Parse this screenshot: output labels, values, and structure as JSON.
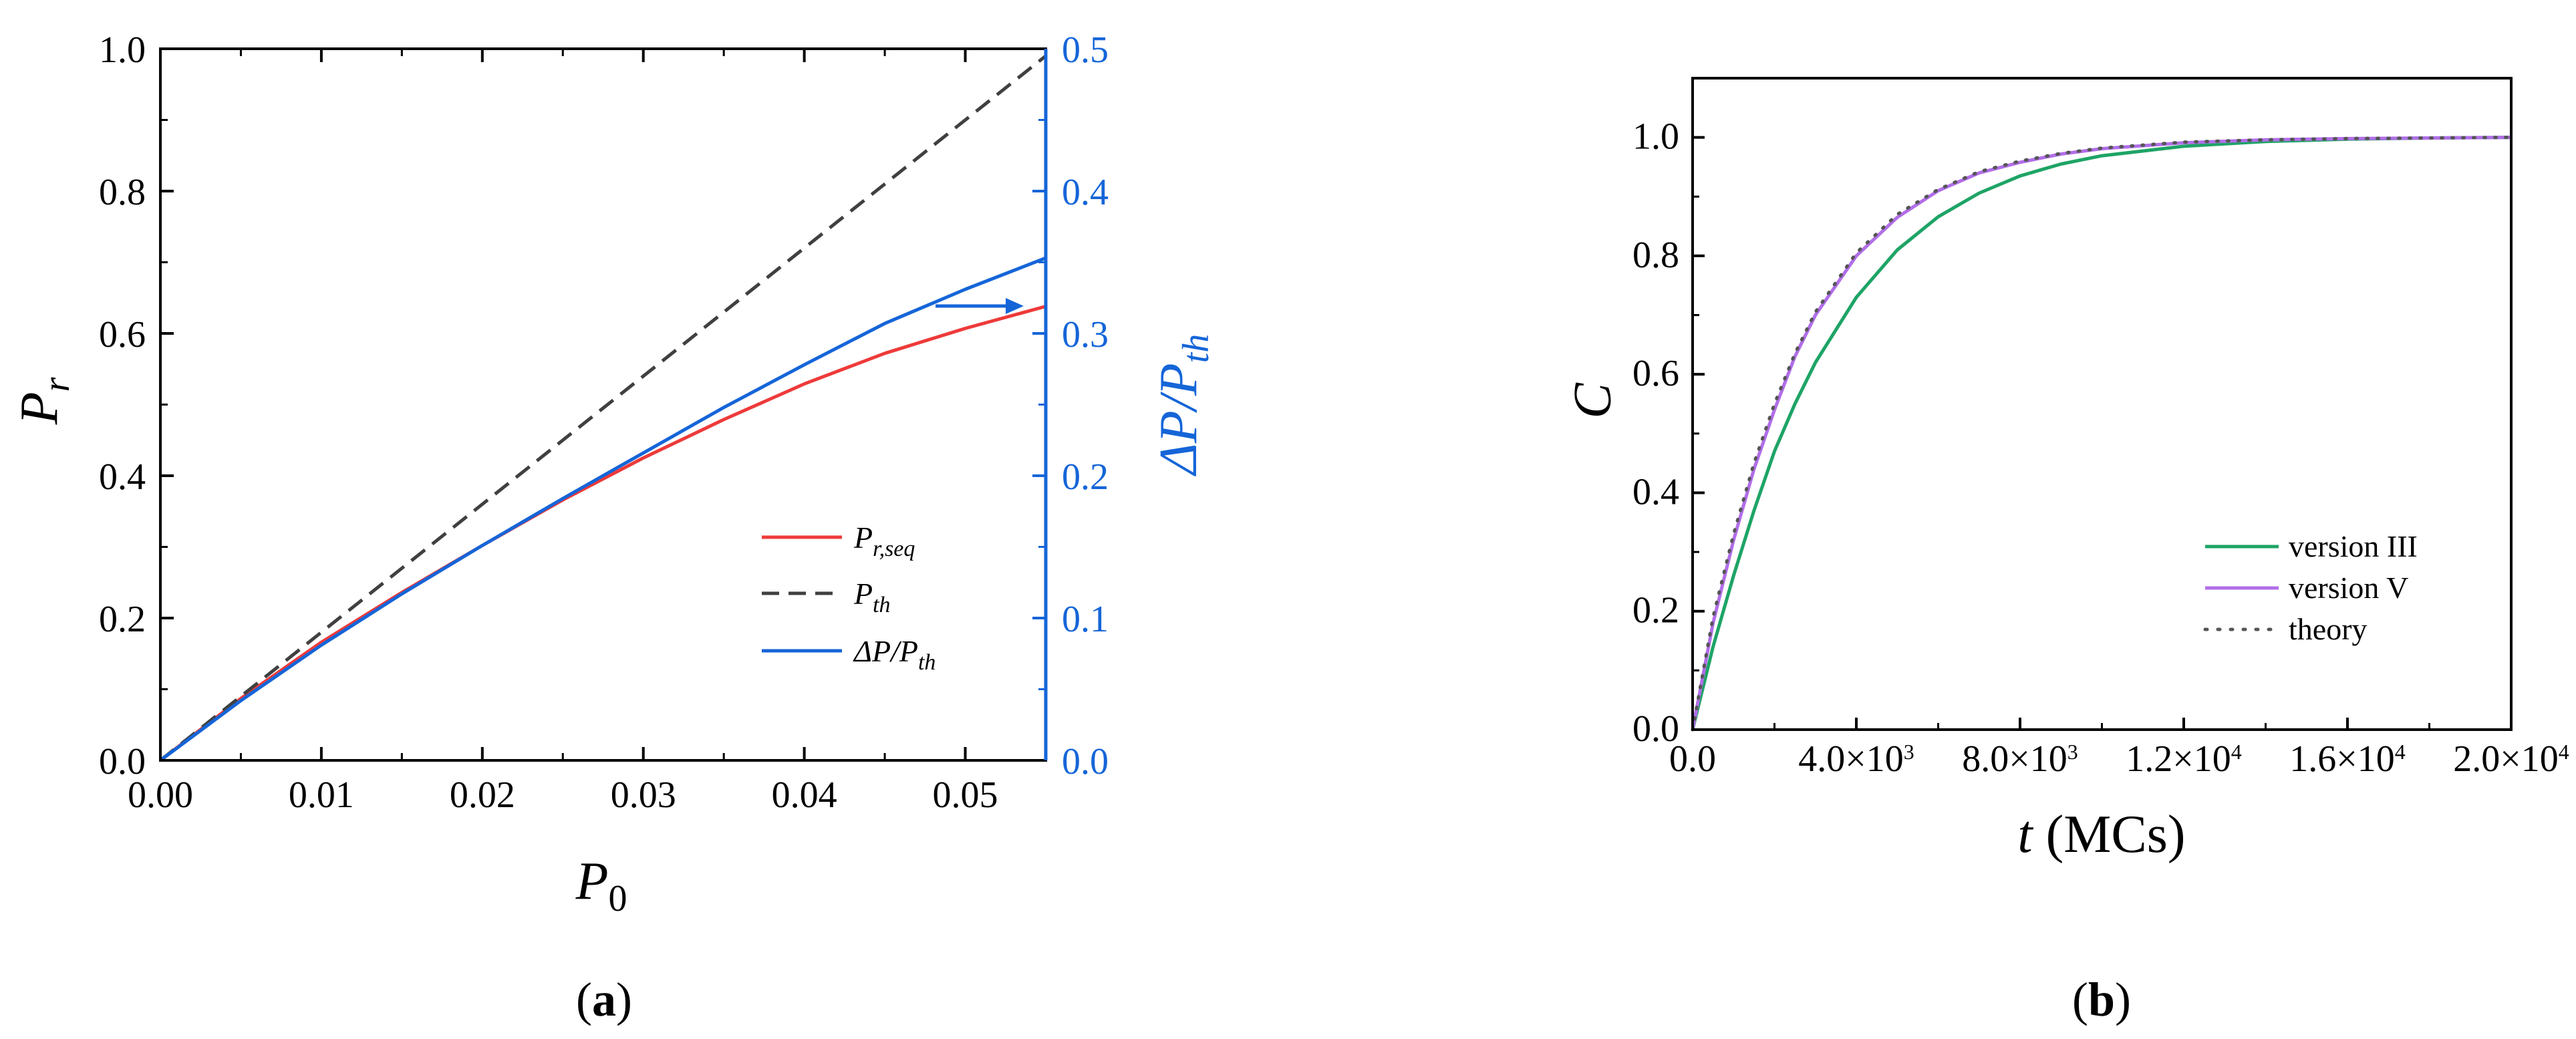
{
  "panels": {
    "a": {
      "label_open": "(",
      "label_letter": "a",
      "label_close": ")"
    },
    "b": {
      "label_open": "(",
      "label_letter": "b",
      "label_close": ")"
    }
  },
  "colors": {
    "red": "#ee3a3a",
    "dash": "#404040",
    "blue": "#1565d8",
    "green": "#1ea466",
    "violet": "#b16ee8",
    "theory": "#555555"
  },
  "chart_data": [
    {
      "type": "line",
      "xlabel": "P0",
      "xlabel_main": "P",
      "xlabel_sub": "0",
      "ylabel": "Pr",
      "ylabel_main": "P",
      "ylabel_sub": "r",
      "y2label": "ΔP/Pth",
      "y2label_main": "ΔP/P",
      "y2label_sub": "th",
      "xlim": [
        0,
        0.055
      ],
      "ylim": [
        0,
        1.0
      ],
      "y2lim": [
        0,
        0.5
      ],
      "xticks": [
        "0.00",
        "0.01",
        "0.02",
        "0.03",
        "0.04",
        "0.05"
      ],
      "yticks": [
        "0.0",
        "0.2",
        "0.4",
        "0.6",
        "0.8",
        "1.0"
      ],
      "y2ticks": [
        "0.0",
        "0.1",
        "0.2",
        "0.3",
        "0.4",
        "0.5"
      ],
      "legend_position": "lower-right",
      "annotation": "arrow pointing to right axis",
      "series": [
        {
          "name": "Pr,seq",
          "name_main": "P",
          "name_sub": "r,seq",
          "axis": "left",
          "style": "solid",
          "color": "#ee3a3a",
          "x": [
            0,
            0.005,
            0.01,
            0.015,
            0.02,
            0.025,
            0.03,
            0.035,
            0.04,
            0.045,
            0.05,
            0.055
          ],
          "y": [
            0,
            0.087,
            0.166,
            0.236,
            0.302,
            0.366,
            0.425,
            0.479,
            0.529,
            0.572,
            0.607,
            0.638
          ]
        },
        {
          "name": "Pth",
          "name_main": "P",
          "name_sub": "th",
          "axis": "left",
          "style": "dashed",
          "color": "#404040",
          "x": [
            0,
            0.055
          ],
          "y": [
            0,
            0.99
          ]
        },
        {
          "name": "ΔP/Pth",
          "name_main": "ΔP/P",
          "name_sub": "th",
          "axis": "right",
          "style": "solid",
          "color": "#1565d8",
          "x": [
            0,
            0.005,
            0.01,
            0.015,
            0.02,
            0.025,
            0.03,
            0.035,
            0.04,
            0.045,
            0.05,
            0.055
          ],
          "y": [
            0,
            0.042,
            0.081,
            0.117,
            0.151,
            0.184,
            0.216,
            0.248,
            0.278,
            0.307,
            0.331,
            0.353
          ]
        }
      ]
    },
    {
      "type": "line",
      "xlabel": "t (MCs)",
      "xlabel_main": "t",
      "xlabel_rest": " (MCs)",
      "ylabel": "C",
      "xlim": [
        0,
        20000
      ],
      "ylim": [
        0,
        1.1
      ],
      "xticks": [
        {
          "value": 0,
          "mant": "0.0",
          "exp": ""
        },
        {
          "value": 4000,
          "mant": "4.0×10",
          "exp": "3"
        },
        {
          "value": 8000,
          "mant": "8.0×10",
          "exp": "3"
        },
        {
          "value": 12000,
          "mant": "1.2×10",
          "exp": "4"
        },
        {
          "value": 16000,
          "mant": "1.6×10",
          "exp": "4"
        },
        {
          "value": 20000,
          "mant": "2.0×10",
          "exp": "4"
        }
      ],
      "yticks": [
        "0.0",
        "0.2",
        "0.4",
        "0.6",
        "0.8",
        "1.0"
      ],
      "legend_position": "lower-right",
      "series": [
        {
          "name": "version III",
          "style": "solid",
          "color": "#1ea466",
          "x": [
            0,
            500,
            1000,
            1500,
            2000,
            2500,
            3000,
            4000,
            5000,
            6000,
            7000,
            8000,
            9000,
            10000,
            12000,
            14000,
            16000,
            18000,
            20000
          ],
          "y": [
            0,
            0.14,
            0.26,
            0.37,
            0.47,
            0.55,
            0.62,
            0.73,
            0.81,
            0.866,
            0.906,
            0.935,
            0.955,
            0.969,
            0.985,
            0.993,
            0.997,
            0.999,
            1.0
          ]
        },
        {
          "name": "version V",
          "style": "solid",
          "color": "#b16ee8",
          "x": [
            0,
            500,
            1000,
            1500,
            2000,
            2500,
            3000,
            4000,
            5000,
            6000,
            7000,
            8000,
            9000,
            10000,
            12000,
            14000,
            16000,
            18000,
            20000
          ],
          "y": [
            0,
            0.18,
            0.32,
            0.44,
            0.54,
            0.63,
            0.7,
            0.8,
            0.865,
            0.91,
            0.94,
            0.958,
            0.972,
            0.981,
            0.991,
            0.996,
            0.998,
            0.999,
            1.0
          ]
        },
        {
          "name": "theory",
          "style": "dotted",
          "color": "#555555",
          "x": [
            0,
            500,
            1000,
            1500,
            2000,
            2500,
            3000,
            4000,
            5000,
            6000,
            7000,
            8000,
            9000,
            10000,
            12000,
            14000,
            16000,
            18000,
            20000
          ],
          "y": [
            0,
            0.19,
            0.33,
            0.45,
            0.55,
            0.635,
            0.705,
            0.805,
            0.87,
            0.912,
            0.942,
            0.96,
            0.973,
            0.982,
            0.992,
            0.996,
            0.998,
            0.999,
            1.0
          ]
        }
      ]
    }
  ]
}
